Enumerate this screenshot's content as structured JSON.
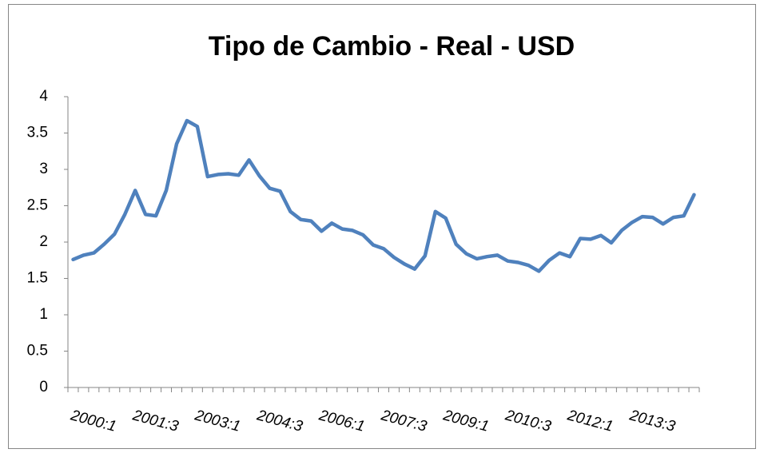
{
  "chart_data": {
    "type": "line",
    "title": "Tipo de Cambio - Real - USD",
    "categories": [
      "2000:1",
      null,
      null,
      null,
      null,
      null,
      "2001:3",
      null,
      null,
      null,
      null,
      null,
      "2003:1",
      null,
      null,
      null,
      null,
      null,
      "2004:3",
      null,
      null,
      null,
      null,
      null,
      "2006:1",
      null,
      null,
      null,
      null,
      null,
      "2007:3",
      null,
      null,
      null,
      null,
      null,
      "2009:1",
      null,
      null,
      null,
      null,
      null,
      "2010:3",
      null,
      null,
      null,
      null,
      null,
      "2012:1",
      null,
      null,
      null,
      null,
      null,
      "2013:3",
      null,
      null,
      null,
      null,
      null,
      null
    ],
    "series": [
      {
        "color": "#4f81bd",
        "values": [
          1.76,
          1.82,
          1.85,
          1.97,
          2.11,
          2.38,
          2.71,
          2.38,
          2.36,
          2.71,
          3.35,
          3.67,
          3.59,
          2.9,
          2.93,
          2.94,
          2.92,
          3.13,
          2.91,
          2.74,
          2.7,
          2.42,
          2.31,
          2.29,
          2.15,
          2.26,
          2.18,
          2.16,
          2.1,
          1.96,
          1.91,
          1.79,
          1.7,
          1.63,
          1.81,
          2.42,
          2.33,
          1.97,
          1.84,
          1.77,
          1.8,
          1.82,
          1.74,
          1.72,
          1.68,
          1.6,
          1.75,
          1.85,
          1.8,
          2.05,
          2.04,
          2.09,
          1.99,
          2.16,
          2.27,
          2.35,
          2.34,
          2.25,
          2.34,
          2.36,
          2.65
        ]
      }
    ],
    "ylim": [
      0,
      4
    ],
    "yticks": [
      0,
      0.5,
      1,
      1.5,
      2,
      2.5,
      3,
      3.5,
      4
    ],
    "grid": false
  }
}
